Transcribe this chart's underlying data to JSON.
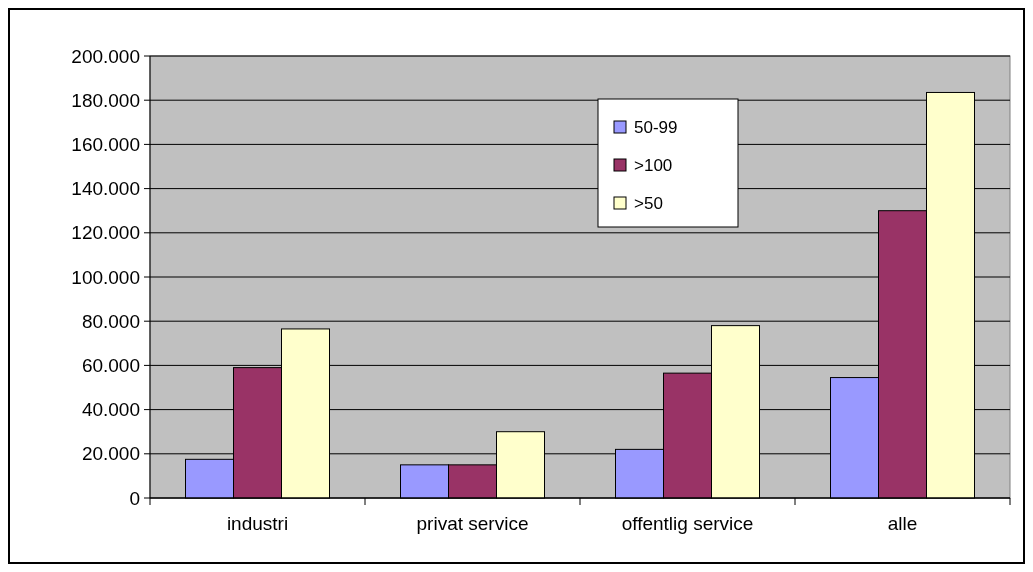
{
  "chart_data": {
    "type": "bar",
    "categories": [
      "industri",
      "privat service",
      "offentlig service",
      "alle"
    ],
    "series": [
      {
        "name": "50-99",
        "color": "#9999ff",
        "values": [
          17500,
          15000,
          22000,
          54500
        ]
      },
      {
        "name": ">100",
        "color": "#993366",
        "values": [
          59000,
          15000,
          56500,
          130000
        ]
      },
      {
        "name": ">50",
        "color": "#ffffcc",
        "values": [
          76500,
          30000,
          78000,
          183500
        ]
      }
    ],
    "ylim": [
      0,
      200000
    ],
    "yticks": [
      {
        "value": 0,
        "label": "0"
      },
      {
        "value": 20000,
        "label": "20.000"
      },
      {
        "value": 40000,
        "label": "40.000"
      },
      {
        "value": 60000,
        "label": "60.000"
      },
      {
        "value": 80000,
        "label": "80.000"
      },
      {
        "value": 100000,
        "label": "100.000"
      },
      {
        "value": 120000,
        "label": "120.000"
      },
      {
        "value": 140000,
        "label": "140.000"
      },
      {
        "value": 160000,
        "label": "160.000"
      },
      {
        "value": 180000,
        "label": "180.000"
      },
      {
        "value": 200000,
        "label": "200.000"
      }
    ],
    "grid": "y",
    "legend": "top right"
  }
}
